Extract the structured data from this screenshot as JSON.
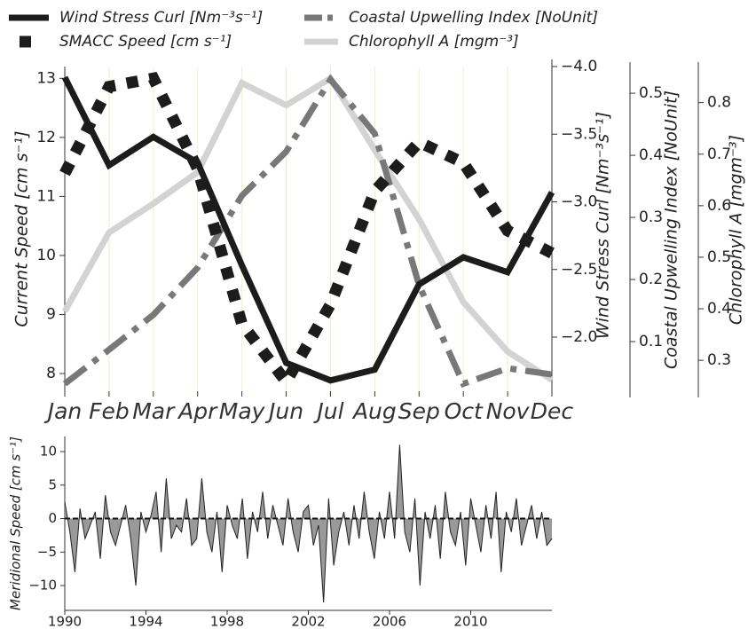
{
  "chart_data": [
    {
      "type": "line",
      "categories": [
        "Jan",
        "Feb",
        "Mar",
        "Apr",
        "May",
        "Jun",
        "Jul",
        "Aug",
        "Sep",
        "Oct",
        "Nov",
        "Dec"
      ],
      "grid": true,
      "ylabel": "Current Speed [cm s⁻¹]",
      "ylim": [
        7.7,
        13.2
      ],
      "yticks": [
        8,
        9,
        10,
        11,
        12,
        13
      ],
      "y2label": "Wind Stress Curl [Nm⁻³s⁻¹]",
      "y2lim": [
        -1.6,
        -4.0
      ],
      "y2ticks": [
        {
          "value": -4.0,
          "label": "−4.0"
        },
        {
          "value": -3.5,
          "label": "−3.5"
        },
        {
          "value": -3.0,
          "label": "−3.0"
        },
        {
          "value": -2.5,
          "label": "−2.5"
        },
        {
          "value": -2.0,
          "label": "−2.0"
        }
      ],
      "y3label": "Coastal Upwelling Index [NoUnit]",
      "y3lim": [
        0.02,
        0.543
      ],
      "y3ticks": [
        0.1,
        0.2,
        0.3,
        0.4,
        0.5
      ],
      "y4label": "Chlorophyll A [mgm⁻³]",
      "y4lim": [
        0.24,
        0.87
      ],
      "y4ticks": [
        0.3,
        0.4,
        0.5,
        0.6,
        0.7,
        0.8
      ],
      "series": [
        {
          "name": "Wind Stress Curl [Nm⁻³s⁻¹]",
          "color": "#1c1c1c",
          "axis": "y2",
          "style": "solid",
          "values": [
            -3.92,
            -3.27,
            -3.48,
            -3.29,
            -2.53,
            -1.81,
            -1.68,
            -1.76,
            -2.39,
            -2.59,
            -2.48,
            -3.07
          ]
        },
        {
          "name": "SMACC Speed [cm s⁻¹]",
          "color": "#1c1c1c",
          "axis": "y",
          "style": "dotted",
          "values": [
            11.39,
            12.86,
            13.0,
            11.47,
            8.84,
            7.86,
            9.17,
            11.09,
            11.92,
            11.57,
            10.42,
            10.04
          ]
        },
        {
          "name": "Coastal Upwelling Index [NoUnit]",
          "color": "#787878",
          "axis": "y3",
          "style": "dashdot",
          "values": [
            0.032,
            0.087,
            0.143,
            0.219,
            0.335,
            0.406,
            0.522,
            0.435,
            0.191,
            0.032,
            0.057,
            0.047
          ]
        },
        {
          "name": "Chlorophyll A [mgm⁻³]",
          "color": "#d3d3d3",
          "axis": "y4",
          "style": "solid",
          "values": [
            0.395,
            0.548,
            0.604,
            0.665,
            0.838,
            0.795,
            0.847,
            0.708,
            0.574,
            0.413,
            0.317,
            0.262
          ]
        }
      ]
    },
    {
      "type": "area",
      "ylabel": "Meridional Speed [cm s⁻¹]",
      "color": "#999999",
      "xlim": [
        1990,
        2014
      ],
      "xticks": [
        1990,
        1994,
        1998,
        2002,
        2006,
        2010
      ],
      "ylim": [
        -13.7,
        12.25
      ],
      "yticks": [
        {
          "value": -10,
          "label": "−10"
        },
        {
          "value": -5,
          "label": "−5"
        },
        0,
        5,
        10
      ],
      "x": [
        1990,
        1990.25,
        1990.5,
        1990.75,
        1991,
        1991.25,
        1991.5,
        1991.75,
        1992,
        1992.25,
        1992.5,
        1992.75,
        1993,
        1993.25,
        1993.5,
        1993.75,
        1994,
        1994.25,
        1994.5,
        1994.75,
        1995,
        1995.25,
        1995.5,
        1995.75,
        1996,
        1996.25,
        1996.5,
        1996.75,
        1997,
        1997.25,
        1997.5,
        1997.75,
        1998,
        1998.25,
        1998.5,
        1998.75,
        1999,
        1999.25,
        1999.5,
        1999.75,
        2000,
        2000.25,
        2000.5,
        2000.75,
        2001,
        2001.25,
        2001.5,
        2001.75,
        2002,
        2002.25,
        2002.5,
        2002.75,
        2003,
        2003.25,
        2003.5,
        2003.75,
        2004,
        2004.25,
        2004.5,
        2004.75,
        2005,
        2005.25,
        2005.5,
        2005.75,
        2006,
        2006.25,
        2006.5,
        2006.75,
        2007,
        2007.25,
        2007.5,
        2007.75,
        2008,
        2008.25,
        2008.5,
        2008.75,
        2009,
        2009.25,
        2009.5,
        2009.75,
        2010,
        2010.25,
        2010.5,
        2010.75,
        2011,
        2011.25,
        2011.5,
        2011.75,
        2012,
        2012.25,
        2012.5,
        2012.75,
        2013,
        2013.25,
        2013.5,
        2013.75,
        2014
      ],
      "values": [
        2.5,
        -2,
        -8,
        1.5,
        -3,
        -1,
        1,
        -6,
        3.5,
        -2,
        -4,
        -1,
        2,
        -3,
        -10,
        1,
        -2,
        0.5,
        4,
        -5,
        6,
        -3,
        -1,
        -2,
        3,
        -4,
        -3,
        6,
        -2,
        -5,
        1,
        -8,
        2,
        -1,
        -3,
        3,
        -6,
        1,
        -2,
        4,
        -3,
        2,
        -1,
        -4,
        3,
        -2,
        -5,
        1,
        2,
        -4,
        -1,
        -12.5,
        3,
        -7,
        -2,
        1,
        -4,
        2,
        -3,
        4,
        -2,
        -6,
        1,
        -3,
        4,
        -3,
        11,
        -2,
        -5,
        3,
        -10,
        1,
        -3,
        2,
        -6,
        4,
        -2,
        -4,
        1,
        -7,
        3,
        -1,
        -5,
        2,
        -3,
        4,
        -8,
        1,
        -2,
        3,
        -4,
        -1,
        2,
        -3,
        1,
        -4,
        -3
      ]
    }
  ]
}
